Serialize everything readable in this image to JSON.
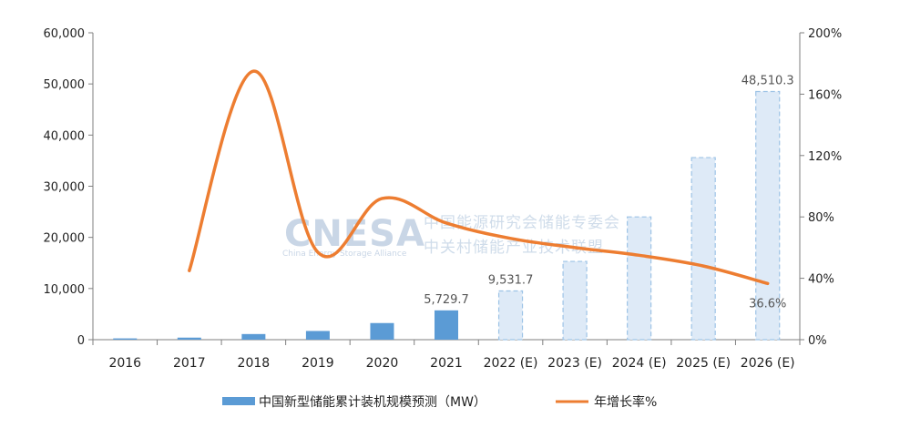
{
  "chart_data": {
    "type": "bar",
    "categories": [
      "2016",
      "2017",
      "2018",
      "2019",
      "2020",
      "2021",
      "2022 (E)",
      "2023 (E)",
      "2024 (E)",
      "2025 (E)",
      "2026 (E)"
    ],
    "estimated": [
      false,
      false,
      false,
      false,
      false,
      false,
      true,
      true,
      true,
      true,
      true
    ],
    "series": [
      {
        "name": "中国新型储能累计装机规模预测（MW）",
        "type": "bar",
        "axis": "left",
        "color": "#5b9bd5",
        "estimate_fill": "#deeaf7",
        "values": [
          250,
          400,
          1100,
          1700,
          3250,
          5729.7,
          9531.7,
          15300,
          24000,
          35600,
          48510.3
        ]
      },
      {
        "name": "年增长率%",
        "type": "line",
        "axis": "right",
        "color": "#ed7d31",
        "values": [
          null,
          45,
          175,
          57,
          92,
          76,
          66,
          60,
          55,
          48,
          36.6
        ]
      }
    ],
    "data_labels": [
      {
        "series": 0,
        "index": 5,
        "text": "5,729.7"
      },
      {
        "series": 0,
        "index": 6,
        "text": "9,531.7"
      },
      {
        "series": 0,
        "index": 10,
        "text": "48,510.3"
      },
      {
        "series": 1,
        "index": 10,
        "text": "36.6%"
      }
    ],
    "y_left": {
      "min": 0,
      "max": 60000,
      "ticks": [
        0,
        10000,
        20000,
        30000,
        40000,
        50000,
        60000
      ],
      "tick_labels": [
        "0",
        "10,000",
        "20,000",
        "30,000",
        "40,000",
        "50,000",
        "60,000"
      ]
    },
    "y_right": {
      "min": 0,
      "max": 200,
      "ticks": [
        0,
        40,
        80,
        120,
        160,
        200
      ],
      "tick_labels": [
        "0%",
        "40%",
        "80%",
        "120%",
        "160%",
        "200%"
      ]
    },
    "grid": false,
    "legend": "bottom-center",
    "xlabel": "",
    "ylabel": "",
    "title": ""
  },
  "watermark": {
    "logo": "CNESA",
    "subtitle": "China Energy Storage Alliance",
    "line1": "中国能源研究会储能专委会",
    "line2": "中关村储能产业技术联盟"
  }
}
